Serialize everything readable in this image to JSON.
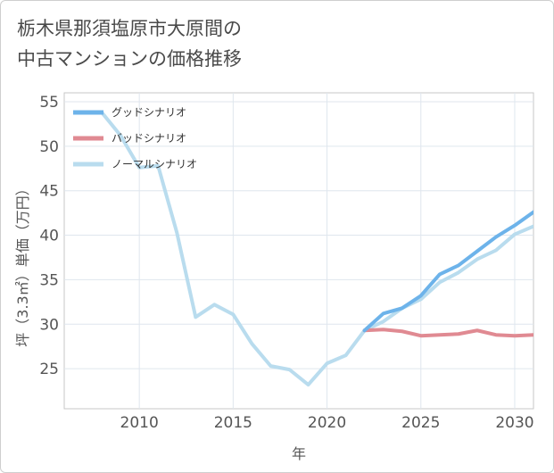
{
  "title_line1": "栃木県那須塩原市大原間の",
  "title_line2": "中古マンションの価格推移",
  "chart_data": {
    "type": "line",
    "xlabel": "年",
    "ylabel": "坪（3.3㎡）単価（万円）",
    "xlim": [
      2006,
      2031
    ],
    "ylim": [
      20.5,
      56
    ],
    "x_ticks": [
      2010,
      2015,
      2020,
      2025,
      2030
    ],
    "y_ticks": [
      25,
      30,
      35,
      40,
      45,
      50,
      55
    ],
    "grid": true,
    "legend_position": "top-left",
    "series": [
      {
        "name": "グッドシナリオ",
        "color": "#6db3ea",
        "x": [
          2022,
          2023,
          2024,
          2025,
          2026,
          2027,
          2028,
          2029,
          2030,
          2031
        ],
        "values": [
          29.3,
          31.2,
          31.8,
          33.2,
          35.6,
          36.6,
          38.2,
          39.8,
          41.1,
          42.6
        ]
      },
      {
        "name": "バッドシナリオ",
        "color": "#e08a92",
        "x": [
          2022,
          2023,
          2024,
          2025,
          2026,
          2027,
          2028,
          2029,
          2030,
          2031
        ],
        "values": [
          29.3,
          29.4,
          29.2,
          28.7,
          28.8,
          28.9,
          29.3,
          28.8,
          28.7,
          28.8
        ]
      },
      {
        "name": "ノーマルシナリオ",
        "color": "#b9dcee",
        "x": [
          2008,
          2009,
          2010,
          2011,
          2012,
          2013,
          2014,
          2015,
          2016,
          2017,
          2018,
          2019,
          2020,
          2021,
          2022,
          2023,
          2024,
          2025,
          2026,
          2027,
          2028,
          2029,
          2030,
          2031
        ],
        "values": [
          53.8,
          51.2,
          47.6,
          47.8,
          40.3,
          30.8,
          32.2,
          31.1,
          27.8,
          25.3,
          24.9,
          23.2,
          25.6,
          26.5,
          29.3,
          30.3,
          31.8,
          32.8,
          34.7,
          35.8,
          37.3,
          38.3,
          40.1,
          41.0
        ]
      }
    ]
  }
}
